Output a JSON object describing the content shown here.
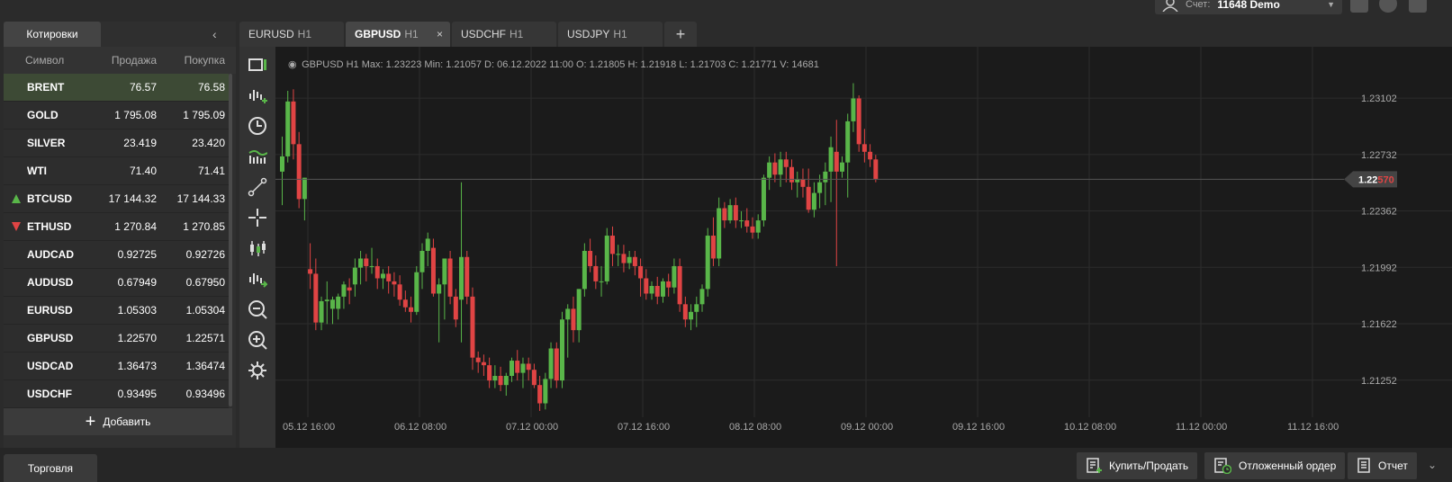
{
  "account": {
    "label": "Счет:",
    "value": "11648 Demo"
  },
  "quotes_panel": {
    "tab_label": "Котировки",
    "headers": {
      "symbol": "Символ",
      "bid": "Продажа",
      "ask": "Покупка"
    },
    "rows": [
      {
        "symbol": "BRENT",
        "bid": "76.57",
        "ask": "76.58",
        "trend": ""
      },
      {
        "symbol": "GOLD",
        "bid": "1 795.08",
        "ask": "1 795.09",
        "trend": ""
      },
      {
        "symbol": "SILVER",
        "bid": "23.419",
        "ask": "23.420",
        "trend": ""
      },
      {
        "symbol": "WTI",
        "bid": "71.40",
        "ask": "71.41",
        "trend": ""
      },
      {
        "symbol": "BTCUSD",
        "bid": "17 144.32",
        "ask": "17 144.33",
        "trend": "up"
      },
      {
        "symbol": "ETHUSD",
        "bid": "1 270.84",
        "ask": "1 270.85",
        "trend": "down"
      },
      {
        "symbol": "AUDCAD",
        "bid": "0.92725",
        "ask": "0.92726",
        "trend": ""
      },
      {
        "symbol": "AUDUSD",
        "bid": "0.67949",
        "ask": "0.67950",
        "trend": ""
      },
      {
        "symbol": "EURUSD",
        "bid": "1.05303",
        "ask": "1.05304",
        "trend": ""
      },
      {
        "symbol": "GBPUSD",
        "bid": "1.22570",
        "ask": "1.22571",
        "trend": ""
      },
      {
        "symbol": "USDCAD",
        "bid": "1.36473",
        "ask": "1.36474",
        "trend": ""
      },
      {
        "symbol": "USDCHF",
        "bid": "0.93495",
        "ask": "0.93496",
        "trend": ""
      }
    ],
    "add_label": "Добавить"
  },
  "chart_tabs": [
    {
      "symbol": "EURUSD",
      "tf": "H1",
      "active": false
    },
    {
      "symbol": "GBPUSD",
      "tf": "H1",
      "active": true
    },
    {
      "symbol": "USDCHF",
      "tf": "H1",
      "active": false
    },
    {
      "symbol": "USDJPY",
      "tf": "H1",
      "active": false
    }
  ],
  "chart_info": "GBPUSD   H1   Max: 1.23223   Min: 1.21057   D: 06.12.2022 11:00   O: 1.21805   H: 1.21918   L: 1.21703   C: 1.21771   V: 14681",
  "bottom": {
    "trade_tab": "Торговля",
    "buy_sell": "Купить/Продать",
    "pending": "Отложенный ордер",
    "report": "Отчет"
  },
  "colors": {
    "up": "#59b649",
    "down": "#e04444",
    "grid": "#2c2c2c",
    "bg": "#1b1b1b"
  },
  "chart_data": {
    "type": "candlestick",
    "symbol": "GBPUSD",
    "timeframe": "H1",
    "y_ticks": [
      "1.23102",
      "1.22732",
      "1.22362",
      "1.21992",
      "1.21622",
      "1.21252"
    ],
    "x_ticks": [
      "05.12 16:00",
      "06.12 08:00",
      "07.12 00:00",
      "07.12 16:00",
      "08.12 08:00",
      "09.12 00:00",
      "09.12 16:00",
      "10.12 08:00",
      "11.12 00:00",
      "11.12 16:00"
    ],
    "current_price": {
      "prefix": "1.22",
      "suffix": "570",
      "value": 1.2257
    },
    "ylim": [
      1.2105,
      1.2338
    ],
    "candles": [
      [
        1.2262,
        1.2285,
        1.224,
        1.2272
      ],
      [
        1.2272,
        1.2315,
        1.2268,
        1.2308
      ],
      [
        1.2308,
        1.2316,
        1.227,
        1.228
      ],
      [
        1.228,
        1.2288,
        1.2238,
        1.2244
      ],
      [
        1.2244,
        1.2258,
        1.223,
        1.2258
      ],
      [
        1.2198,
        1.2215,
        1.2185,
        1.2195
      ],
      [
        1.2195,
        1.2205,
        1.2158,
        1.2163
      ],
      [
        1.2163,
        1.218,
        1.2158,
        1.2177
      ],
      [
        1.2177,
        1.219,
        1.2162,
        1.2178
      ],
      [
        1.2172,
        1.218,
        1.2162,
        1.2178
      ],
      [
        1.2172,
        1.2182,
        1.2165,
        1.218
      ],
      [
        1.218,
        1.219,
        1.2172,
        1.2188
      ],
      [
        1.2186,
        1.2192,
        1.2175,
        1.2184
      ],
      [
        1.2188,
        1.2205,
        1.218,
        1.2199
      ],
      [
        1.2199,
        1.221,
        1.2188,
        1.2205
      ],
      [
        1.2205,
        1.2208,
        1.219,
        1.22
      ],
      [
        1.22,
        1.2212,
        1.2195,
        1.22
      ],
      [
        1.22,
        1.2205,
        1.2185,
        1.2192
      ],
      [
        1.2192,
        1.2198,
        1.2185,
        1.2195
      ],
      [
        1.2195,
        1.22,
        1.2182,
        1.219
      ],
      [
        1.219,
        1.2196,
        1.218,
        1.2188
      ],
      [
        1.2188,
        1.2194,
        1.2174,
        1.2178
      ],
      [
        1.2178,
        1.2184,
        1.217,
        1.2173
      ],
      [
        1.2173,
        1.218,
        1.2163,
        1.217
      ],
      [
        1.217,
        1.22,
        1.2168,
        1.2196
      ],
      [
        1.2196,
        1.2215,
        1.2185,
        1.221
      ],
      [
        1.221,
        1.2222,
        1.22,
        1.2218
      ],
      [
        1.2212,
        1.2218,
        1.218,
        1.2182
      ],
      [
        1.2182,
        1.2192,
        1.215,
        1.2188
      ],
      [
        1.2188,
        1.2205,
        1.2165,
        1.2205
      ],
      [
        1.2205,
        1.221,
        1.2175,
        1.218
      ],
      [
        1.218,
        1.2185,
        1.216,
        1.2165
      ],
      [
        1.2178,
        1.2255,
        1.215,
        1.2206
      ],
      [
        1.2206,
        1.221,
        1.2175,
        1.218
      ],
      [
        1.218,
        1.2186,
        1.2132,
        1.214
      ],
      [
        1.214,
        1.2144,
        1.213,
        1.2137
      ],
      [
        1.2137,
        1.2142,
        1.2128,
        1.2135
      ],
      [
        1.2135,
        1.214,
        1.212,
        1.2125
      ],
      [
        1.2125,
        1.2135,
        1.212,
        1.2128
      ],
      [
        1.2128,
        1.2134,
        1.2118,
        1.2122
      ],
      [
        1.2122,
        1.213,
        1.2115,
        1.2128
      ],
      [
        1.2128,
        1.214,
        1.2124,
        1.2138
      ],
      [
        1.2138,
        1.2145,
        1.2125,
        1.213
      ],
      [
        1.213,
        1.214,
        1.212,
        1.2136
      ],
      [
        1.2136,
        1.214,
        1.2125,
        1.2132
      ],
      [
        1.2132,
        1.2136,
        1.212,
        1.2122
      ],
      [
        1.2122,
        1.2128,
        1.2105,
        1.211
      ],
      [
        1.211,
        1.213,
        1.2106,
        1.2126
      ],
      [
        1.2126,
        1.215,
        1.212,
        1.2146
      ],
      [
        1.2146,
        1.215,
        1.212,
        1.2125
      ],
      [
        1.2125,
        1.217,
        1.212,
        1.2165
      ],
      [
        1.2165,
        1.2175,
        1.214,
        1.2172
      ],
      [
        1.2172,
        1.218,
        1.215,
        1.2158
      ],
      [
        1.2158,
        1.2185,
        1.215,
        1.2185
      ],
      [
        1.2185,
        1.2215,
        1.218,
        1.221
      ],
      [
        1.221,
        1.2218,
        1.2196,
        1.22
      ],
      [
        1.22,
        1.2207,
        1.2185,
        1.219
      ],
      [
        1.219,
        1.22,
        1.218,
        1.219
      ],
      [
        1.219,
        1.2225,
        1.2188,
        1.222
      ],
      [
        1.222,
        1.2226,
        1.22,
        1.2208
      ],
      [
        1.2208,
        1.2214,
        1.22,
        1.2208
      ],
      [
        1.2208,
        1.2214,
        1.2196,
        1.2202
      ],
      [
        1.2202,
        1.221,
        1.2198,
        1.2206
      ],
      [
        1.2206,
        1.221,
        1.2194,
        1.22
      ],
      [
        1.22,
        1.2205,
        1.218,
        1.2192
      ],
      [
        1.2192,
        1.2198,
        1.2178,
        1.2182
      ],
      [
        1.2182,
        1.219,
        1.2178,
        1.2187
      ],
      [
        1.2187,
        1.2193,
        1.2175,
        1.218
      ],
      [
        1.218,
        1.2192,
        1.2176,
        1.219
      ],
      [
        1.219,
        1.2195,
        1.218,
        1.2186
      ],
      [
        1.2186,
        1.2205,
        1.2182,
        1.22
      ],
      [
        1.22,
        1.2205,
        1.217,
        1.2175
      ],
      [
        1.2175,
        1.218,
        1.216,
        1.2165
      ],
      [
        1.2165,
        1.2175,
        1.2158,
        1.217
      ],
      [
        1.217,
        1.218,
        1.216,
        1.2175
      ],
      [
        1.2175,
        1.2188,
        1.217,
        1.2185
      ],
      [
        1.2185,
        1.2225,
        1.218,
        1.222
      ],
      [
        1.222,
        1.2232,
        1.22,
        1.2205
      ],
      [
        1.2205,
        1.2245,
        1.22,
        1.2238
      ],
      [
        1.2238,
        1.2242,
        1.2225,
        1.223
      ],
      [
        1.223,
        1.2244,
        1.2228,
        1.224
      ],
      [
        1.224,
        1.2245,
        1.2225,
        1.223
      ],
      [
        1.223,
        1.2236,
        1.2225,
        1.223
      ],
      [
        1.223,
        1.2238,
        1.2222,
        1.2226
      ],
      [
        1.2226,
        1.2232,
        1.2218,
        1.2222
      ],
      [
        1.2222,
        1.2234,
        1.2218,
        1.223
      ],
      [
        1.223,
        1.226,
        1.2226,
        1.2258
      ],
      [
        1.2258,
        1.2272,
        1.225,
        1.2268
      ],
      [
        1.2268,
        1.2274,
        1.2255,
        1.226
      ],
      [
        1.226,
        1.2275,
        1.2252,
        1.227
      ],
      [
        1.227,
        1.2275,
        1.2255,
        1.2265
      ],
      [
        1.2265,
        1.227,
        1.225,
        1.2255
      ],
      [
        1.2255,
        1.2262,
        1.2245,
        1.2257
      ],
      [
        1.2257,
        1.2264,
        1.2245,
        1.2252
      ],
      [
        1.2252,
        1.2264,
        1.2235,
        1.2237
      ],
      [
        1.2237,
        1.2255,
        1.2232,
        1.2248
      ],
      [
        1.2248,
        1.226,
        1.2238,
        1.2255
      ],
      [
        1.2255,
        1.2268,
        1.224,
        1.2262
      ],
      [
        1.2262,
        1.2285,
        1.2242,
        1.2278
      ],
      [
        1.2275,
        1.2296,
        1.22,
        1.2262
      ],
      [
        1.2262,
        1.2272,
        1.2258,
        1.2268
      ],
      [
        1.2268,
        1.23,
        1.2245,
        1.2295
      ],
      [
        1.2295,
        1.232,
        1.2288,
        1.231
      ],
      [
        1.231,
        1.2312,
        1.2275,
        1.228
      ],
      [
        1.228,
        1.229,
        1.2268,
        1.2275
      ],
      [
        1.2275,
        1.228,
        1.2265,
        1.227
      ],
      [
        1.227,
        1.2273,
        1.2255,
        1.2257
      ]
    ]
  }
}
